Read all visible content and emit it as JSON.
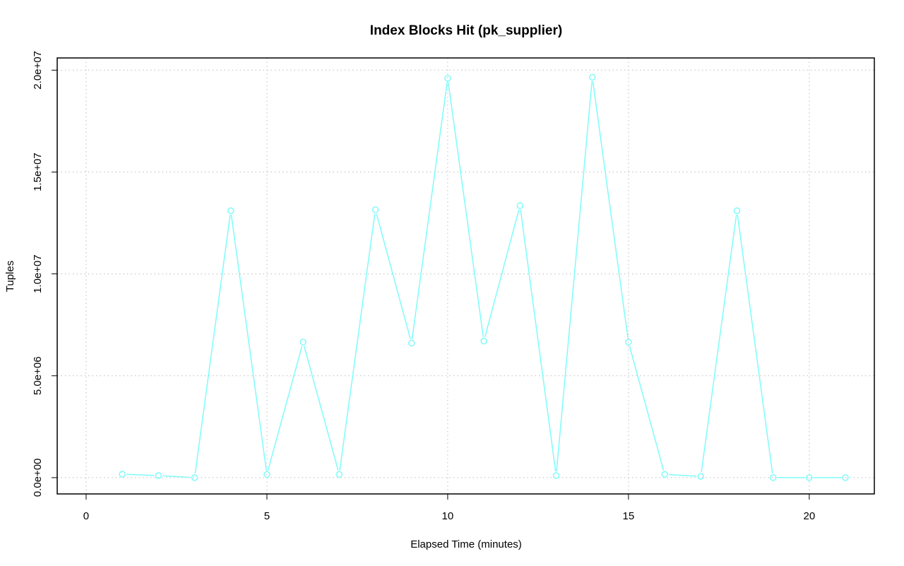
{
  "chart_data": {
    "type": "line",
    "title": "Index Blocks Hit (pk_supplier)",
    "xlabel": "Elapsed Time (minutes)",
    "ylabel": "Tuples",
    "xlim": [
      -0.8,
      21.8
    ],
    "ylim": [
      -800000,
      20600000
    ],
    "x_ticks": [
      0,
      5,
      10,
      15,
      20
    ],
    "x_tick_labels": [
      "0",
      "5",
      "10",
      "15",
      "20"
    ],
    "y_ticks": [
      0,
      5000000,
      10000000,
      15000000,
      20000000
    ],
    "y_tick_labels": [
      "0.0e+00",
      "5.0e+06",
      "1.0e+07",
      "1.5e+07",
      "2.0e+07"
    ],
    "grid": true,
    "series": [
      {
        "color": "#7ffbfb",
        "marker": "open-circle",
        "x": [
          1,
          2,
          3,
          4,
          5,
          6,
          7,
          8,
          9,
          10,
          11,
          12,
          13,
          14,
          15,
          16,
          17,
          18,
          19,
          20,
          21
        ],
        "values": [
          170000,
          100000,
          0,
          13100000,
          160000,
          6650000,
          160000,
          13150000,
          6600000,
          19600000,
          6700000,
          13350000,
          100000,
          19650000,
          6650000,
          160000,
          60000,
          13100000,
          0,
          0,
          0
        ]
      }
    ]
  }
}
